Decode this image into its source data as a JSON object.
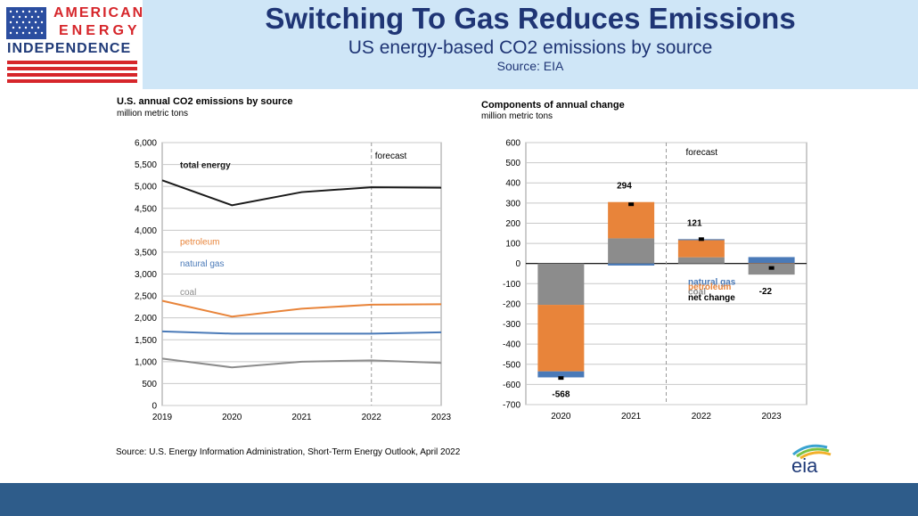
{
  "header": {
    "logo_line1": "AMERICAN",
    "logo_line2": "ENERGY",
    "logo_line3": "INDEPENDENCE",
    "title": "Switching To Gas Reduces Emissions",
    "subtitle": "US energy-based CO2 emissions by source",
    "source": "Source: EIA"
  },
  "footer": {
    "source": "Source: U.S. Energy Information Administration, Short-Term Energy Outlook, April 2022",
    "logo": "eia"
  },
  "colors": {
    "total_energy": "#1a1a1a",
    "petroleum": "#e8843a",
    "natural_gas": "#4a7ab8",
    "coal": "#8c8c8c",
    "header_bg": "#cfe6f7",
    "title_color": "#1f3575",
    "bottom_bar": "#2e5c8a"
  },
  "chart_data": [
    {
      "type": "line",
      "title": "U.S. annual CO2 emissions by source",
      "subtitle": "million metric tons",
      "x": [
        "2019",
        "2020",
        "2021",
        "2022",
        "2023"
      ],
      "ylim": [
        0,
        6000
      ],
      "yticks": [
        "0",
        "500",
        "1,000",
        "1,500",
        "2,000",
        "2,500",
        "3,000",
        "3,500",
        "4,000",
        "4,500",
        "5,000",
        "5,500",
        "6,000"
      ],
      "forecast_label": "forecast",
      "forecast_start": "2022",
      "grid": true,
      "series": [
        {
          "name": "total energy",
          "values": [
            5140,
            4570,
            4870,
            4980,
            4970
          ]
        },
        {
          "name": "petroleum",
          "values": [
            2390,
            2030,
            2210,
            2300,
            2310
          ]
        },
        {
          "name": "natural gas",
          "values": [
            1690,
            1640,
            1640,
            1640,
            1670
          ]
        },
        {
          "name": "coal",
          "values": [
            1070,
            870,
            1000,
            1030,
            970
          ]
        }
      ]
    },
    {
      "type": "bar",
      "title": "Components of annual change",
      "subtitle": "million metric tons",
      "categories": [
        "2020",
        "2021",
        "2022",
        "2023"
      ],
      "ylim": [
        -700,
        600
      ],
      "yticks": [
        "-700",
        "-600",
        "-500",
        "-400",
        "-300",
        "-200",
        "-100",
        "0",
        "100",
        "200",
        "300",
        "400",
        "500",
        "600"
      ],
      "forecast_label": "forecast",
      "grid": true,
      "series": [
        {
          "name": "natural gas",
          "values": [
            -30,
            -10,
            5,
            30
          ]
        },
        {
          "name": "petroleum",
          "values": [
            -330,
            180,
            85,
            2
          ]
        },
        {
          "name": "coal",
          "values": [
            -205,
            125,
            31,
            -55
          ]
        },
        {
          "name": "net change",
          "values": [
            -568,
            294,
            121,
            -22
          ]
        }
      ],
      "net_labels": [
        "-568",
        "294",
        "121",
        "-22"
      ]
    }
  ]
}
